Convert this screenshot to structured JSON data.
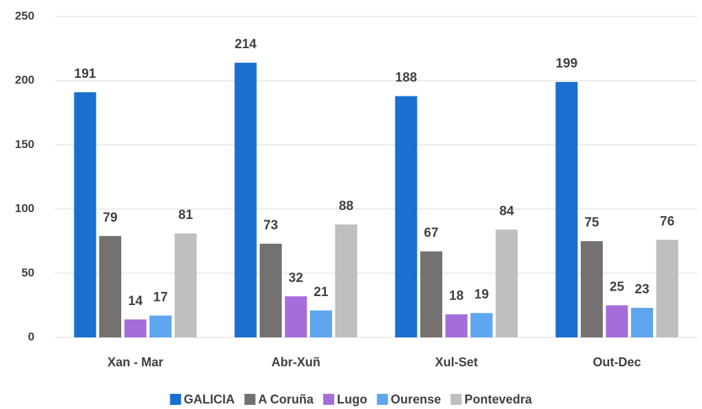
{
  "chart_data": {
    "type": "bar",
    "categories": [
      "Xan - Mar",
      "Abr-Xuñ",
      "Xul-Set",
      "Out-Dec"
    ],
    "series": [
      {
        "name": "GALICIA",
        "color": "#1a6fd0",
        "values": [
          191,
          214,
          188,
          199
        ]
      },
      {
        "name": "A Coruña",
        "color": "#767171",
        "values": [
          79,
          73,
          67,
          75
        ]
      },
      {
        "name": "Lugo",
        "color": "#a46ddb",
        "values": [
          14,
          32,
          18,
          25
        ]
      },
      {
        "name": "Ourense",
        "color": "#5ea6ef",
        "values": [
          17,
          21,
          19,
          23
        ]
      },
      {
        "name": "Pontevedra",
        "color": "#bfbfbf",
        "values": [
          81,
          88,
          84,
          76
        ]
      }
    ],
    "ylim": [
      0,
      250
    ],
    "yticks": [
      0,
      50,
      100,
      150,
      200,
      250
    ],
    "grid": true,
    "legend": "bottom"
  }
}
